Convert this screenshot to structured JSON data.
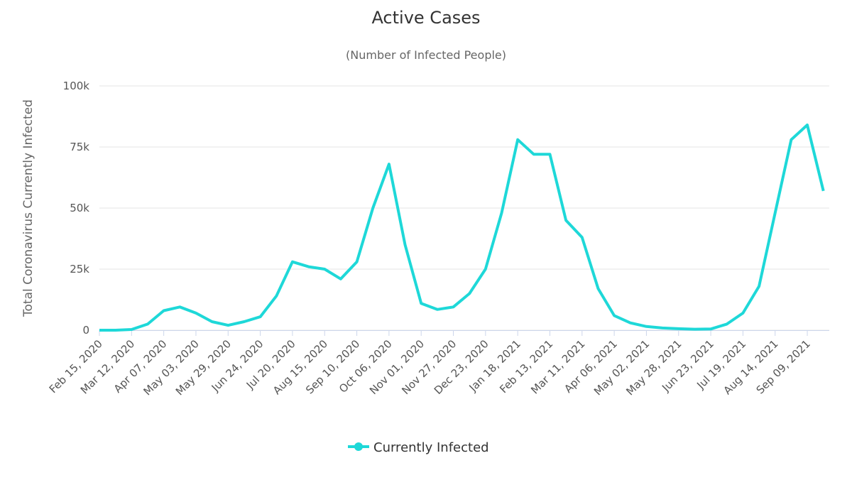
{
  "chart_data": {
    "type": "line",
    "title": "Active Cases",
    "subtitle": "(Number of Infected People)",
    "y_label": "Total Coronavirus Currently Infected",
    "categories": [
      "Feb 15, 2020",
      null,
      "Mar 12, 2020",
      null,
      "Apr 07, 2020",
      null,
      "May 03, 2020",
      null,
      "May 29, 2020",
      null,
      "Jun 24, 2020",
      null,
      "Jul 20, 2020",
      null,
      "Aug 15, 2020",
      null,
      "Sep 10, 2020",
      null,
      "Oct 06, 2020",
      null,
      "Nov 01, 2020",
      null,
      "Nov 27, 2020",
      null,
      "Dec 23, 2020",
      null,
      "Jan 18, 2021",
      null,
      "Feb 13, 2021",
      null,
      "Mar 11, 2021",
      null,
      "Apr 06, 2021",
      null,
      "May 02, 2021",
      null,
      "May 28, 2021",
      null,
      "Jun 23, 2021",
      null,
      "Jul 19, 2021",
      null,
      "Aug 14, 2021",
      null,
      "Sep 09, 2021",
      null
    ],
    "series": [
      {
        "name": "Currently Infected",
        "color": "#1ed8d8",
        "values": [
          0,
          0,
          300,
          2500,
          8000,
          9500,
          7000,
          3500,
          2000,
          3500,
          5500,
          14000,
          28000,
          26000,
          25000,
          21000,
          28000,
          50000,
          68000,
          35000,
          11000,
          8500,
          9500,
          15000,
          25000,
          48000,
          78000,
          72000,
          72000,
          45000,
          38000,
          17000,
          6000,
          3000,
          1500,
          900,
          600,
          400,
          500,
          2500,
          7000,
          18000,
          48000,
          78000,
          84000,
          57000
        ]
      }
    ],
    "ylim": [
      0,
      100000
    ],
    "yticks": [
      0,
      {
        "value": 25000,
        "label": "25k"
      },
      {
        "value": 50000,
        "label": "50k"
      },
      {
        "value": 75000,
        "label": "75k"
      },
      {
        "value": 100000,
        "label": "100k"
      }
    ],
    "grid": true,
    "legend": "bottom"
  }
}
